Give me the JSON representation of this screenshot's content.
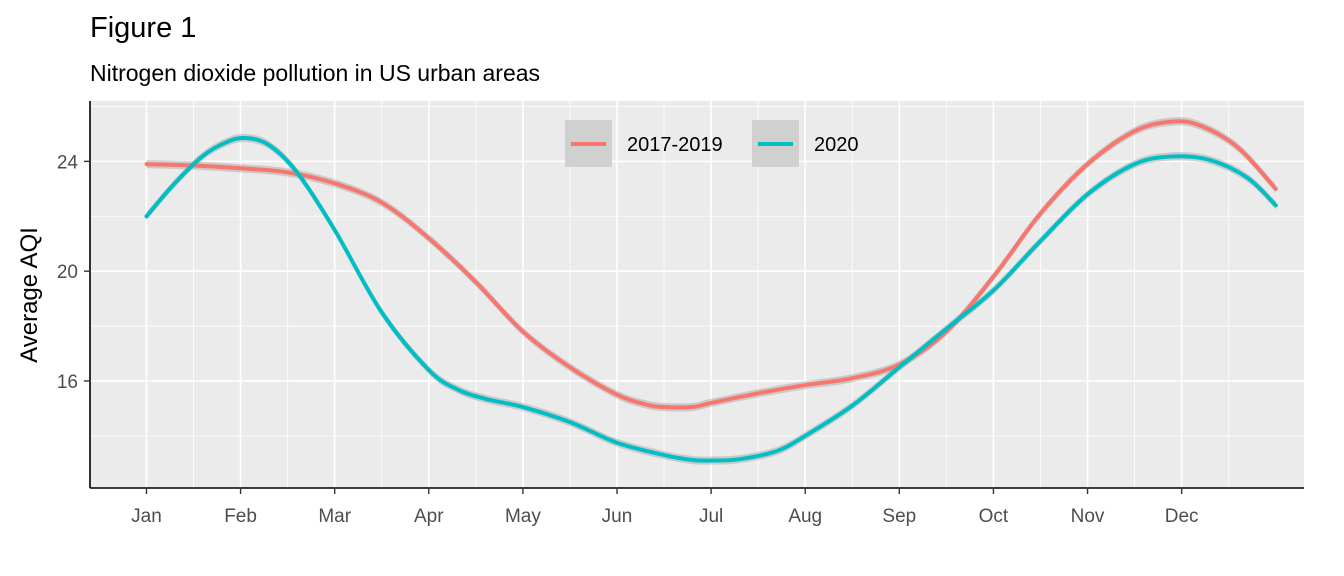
{
  "chart_data": {
    "type": "line",
    "title": "Figure 1",
    "subtitle": "Nitrogen dioxide pollution in US urban areas",
    "xlabel": "",
    "ylabel": "Average AQI",
    "x_ticks": [
      "Jan",
      "Feb",
      "Mar",
      "Apr",
      "May",
      "Jun",
      "Jul",
      "Aug",
      "Sep",
      "Oct",
      "Nov",
      "Dec"
    ],
    "xlim": [
      -0.6,
      12.3
    ],
    "ylim": [
      12.1,
      26.2
    ],
    "y_ticks": [
      16,
      20,
      24
    ],
    "y_minor": [
      14,
      18,
      22,
      26
    ],
    "grid": true,
    "legend": "top-center",
    "series": [
      {
        "name": "2017-2019",
        "color": "#F8766D",
        "band": 0.15,
        "points": [
          [
            0,
            23.9
          ],
          [
            0.5,
            23.85
          ],
          [
            1,
            23.75
          ],
          [
            1.5,
            23.6
          ],
          [
            2,
            23.2
          ],
          [
            2.5,
            22.5
          ],
          [
            3,
            21.2
          ],
          [
            3.5,
            19.6
          ],
          [
            4,
            17.8
          ],
          [
            4.5,
            16.5
          ],
          [
            5,
            15.5
          ],
          [
            5.3,
            15.15
          ],
          [
            5.5,
            15.05
          ],
          [
            5.8,
            15.05
          ],
          [
            6,
            15.2
          ],
          [
            6.5,
            15.55
          ],
          [
            7,
            15.85
          ],
          [
            7.5,
            16.1
          ],
          [
            8,
            16.6
          ],
          [
            8.5,
            17.8
          ],
          [
            9,
            19.8
          ],
          [
            9.5,
            22.1
          ],
          [
            10,
            23.9
          ],
          [
            10.5,
            25.1
          ],
          [
            10.9,
            25.45
          ],
          [
            11.2,
            25.3
          ],
          [
            11.6,
            24.5
          ],
          [
            12,
            23.0
          ]
        ]
      },
      {
        "name": "2020",
        "color": "#00BFC4",
        "band": 0.15,
        "points": [
          [
            0,
            22.0
          ],
          [
            0.3,
            23.2
          ],
          [
            0.6,
            24.2
          ],
          [
            0.85,
            24.7
          ],
          [
            1.05,
            24.85
          ],
          [
            1.3,
            24.6
          ],
          [
            1.6,
            23.6
          ],
          [
            2,
            21.5
          ],
          [
            2.5,
            18.5
          ],
          [
            3,
            16.4
          ],
          [
            3.3,
            15.7
          ],
          [
            3.6,
            15.35
          ],
          [
            4,
            15.05
          ],
          [
            4.5,
            14.5
          ],
          [
            5,
            13.75
          ],
          [
            5.5,
            13.3
          ],
          [
            5.8,
            13.12
          ],
          [
            6,
            13.1
          ],
          [
            6.3,
            13.15
          ],
          [
            6.7,
            13.45
          ],
          [
            7,
            14.0
          ],
          [
            7.5,
            15.1
          ],
          [
            8,
            16.5
          ],
          [
            8.5,
            17.9
          ],
          [
            9,
            19.3
          ],
          [
            9.5,
            21.1
          ],
          [
            10,
            22.8
          ],
          [
            10.5,
            23.9
          ],
          [
            10.9,
            24.18
          ],
          [
            11.3,
            24.05
          ],
          [
            11.7,
            23.4
          ],
          [
            12,
            22.4
          ]
        ]
      }
    ]
  }
}
